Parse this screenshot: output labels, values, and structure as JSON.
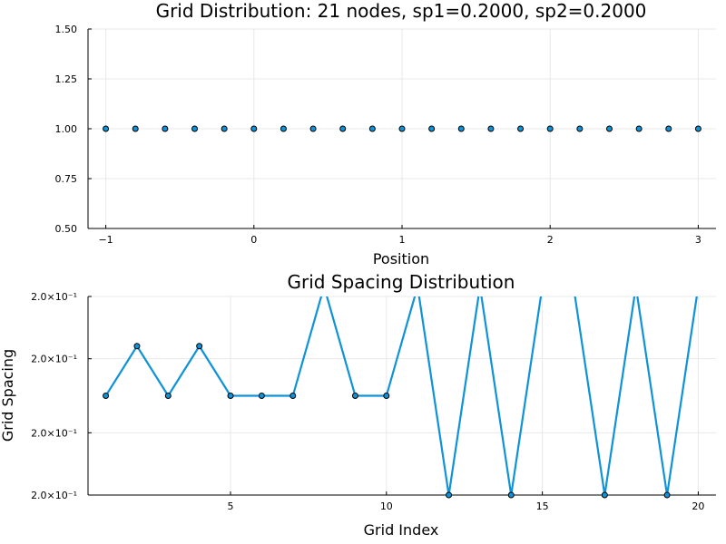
{
  "chart_data": [
    {
      "type": "scatter",
      "title": "Grid Distribution: 21 nodes, sp1=0.2000, sp2=0.2000",
      "xlabel": "Position",
      "ylabel": "",
      "xlim": [
        -1.12,
        3.12
      ],
      "ylim": [
        0.5,
        1.5
      ],
      "x_ticks": [
        -1,
        0,
        1,
        2,
        3
      ],
      "x_tick_labels": [
        "−1",
        "0",
        "1",
        "2",
        "3"
      ],
      "y_ticks": [
        0.5,
        0.75,
        1.0,
        1.25,
        1.5
      ],
      "y_tick_labels": [
        "0.50",
        "0.75",
        "1.00",
        "1.25",
        "1.50"
      ],
      "grid": true,
      "legend": "none",
      "color": "#0f93d8",
      "series": [
        {
          "x": [
            -1.0,
            -0.8,
            -0.6,
            -0.4,
            -0.2,
            0.0,
            0.2,
            0.4,
            0.6,
            0.8,
            1.0,
            1.2,
            1.4,
            1.6,
            1.8,
            2.0,
            2.2,
            2.4,
            2.6,
            2.8,
            3.0
          ],
          "y": [
            1,
            1,
            1,
            1,
            1,
            1,
            1,
            1,
            1,
            1,
            1,
            1,
            1,
            1,
            1,
            1,
            1,
            1,
            1,
            1,
            1
          ]
        }
      ]
    },
    {
      "type": "line",
      "title": "Grid Spacing Distribution",
      "xlabel": "Grid Index",
      "ylabel": "Grid Spacing",
      "xlim": [
        0.43,
        20.57
      ],
      "ylim": [
        0,
        1
      ],
      "x_ticks": [
        5,
        10,
        15,
        20
      ],
      "x_tick_labels": [
        "5",
        "10",
        "15",
        "20"
      ],
      "y_ticks": [
        0.0,
        0.3136,
        0.6864,
        1.0
      ],
      "y_tick_labels": [
        "2.0×10⁻¹",
        "2.0×10⁻¹",
        "2.0×10⁻¹",
        "2.0×10⁻¹"
      ],
      "grid": true,
      "legend": "none",
      "color": "#0f93d8",
      "series": [
        {
          "x": [
            1,
            2,
            3,
            4,
            5,
            6,
            7,
            8,
            9,
            10,
            11,
            12,
            13,
            14,
            15,
            16,
            17,
            18,
            19,
            20
          ],
          "y": [
            0.5,
            0.75,
            0.5,
            0.75,
            0.5,
            0.5,
            0.5,
            1.05,
            0.5,
            0.5,
            1.05,
            0.0,
            1.05,
            0.0,
            1.05,
            1.05,
            0.0,
            1.05,
            0.0,
            1.05
          ]
        }
      ]
    }
  ]
}
